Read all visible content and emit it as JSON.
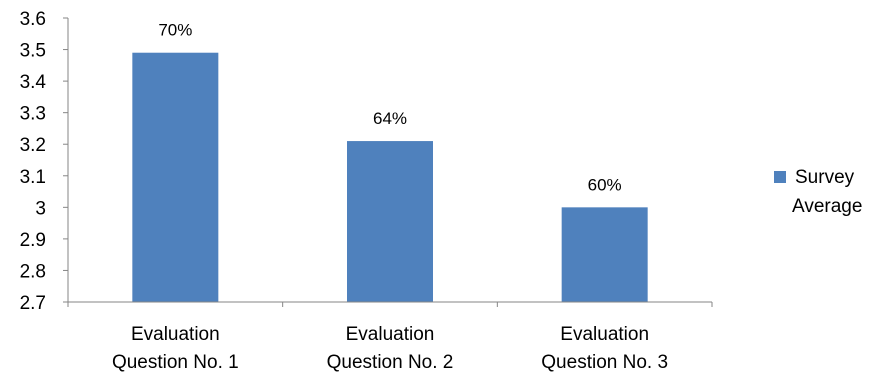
{
  "chart_data": {
    "type": "bar",
    "categories": [
      [
        "Evaluation",
        "Question No. 1"
      ],
      [
        "Evaluation",
        "Question No. 2"
      ],
      [
        "Evaluation",
        "Question No. 3"
      ]
    ],
    "series": [
      {
        "name": "Survey Average",
        "values": [
          3.49,
          3.21,
          3.0
        ],
        "data_labels": [
          "70%",
          "64%",
          "60%"
        ],
        "color": "#4F81BD"
      }
    ],
    "ylim": [
      2.7,
      3.6
    ],
    "yticks": [
      "3.6",
      "3.5",
      "3.4",
      "3.3",
      "3.2",
      "3.1",
      "3",
      "2.9",
      "2.8",
      "2.7"
    ],
    "legend": {
      "position": "right",
      "lines": [
        "Survey",
        "Average"
      ]
    },
    "grid": false
  }
}
